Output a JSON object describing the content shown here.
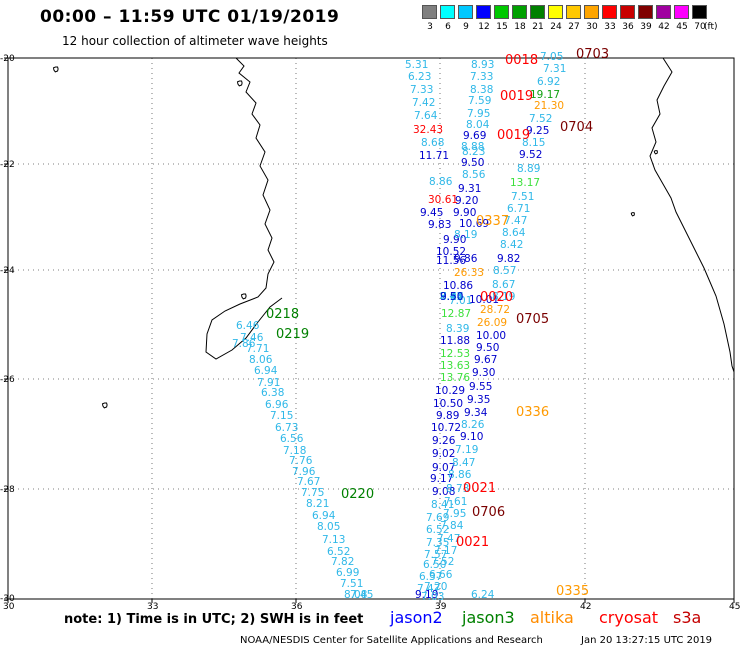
{
  "header": {
    "title": "00:00 – 11:59 UTC 01/19/2019",
    "subtitle": "12 hour collection of altimeter wave heights"
  },
  "legend": {
    "levels": [
      "3",
      "6",
      "9",
      "12",
      "15",
      "18",
      "21",
      "24",
      "27",
      "30",
      "33",
      "36",
      "39",
      "42",
      "45",
      "70"
    ],
    "unit": "(ft)",
    "colors": [
      "#808080",
      "#00ffff",
      "#00c8ff",
      "#0000ff",
      "#00c800",
      "#00a000",
      "#008000",
      "#ffff00",
      "#ffc800",
      "#ffa500",
      "#ff0000",
      "#c80000",
      "#800000",
      "#a000a0",
      "#ff00ff",
      "#000000"
    ]
  },
  "axes": {
    "lat_labels": [
      "-20",
      "-22",
      "-24",
      "-26",
      "-28",
      "-30"
    ],
    "lon_labels": [
      "30",
      "33",
      "36",
      "39",
      "42",
      "45"
    ]
  },
  "colors": {
    "c_6": "#30b8e8",
    "c_9": "#0000cc",
    "c_12": "#0000ff",
    "c_15": "#3ce03c",
    "c_18": "#10a010",
    "c_27": "#ff9a00",
    "c_33": "#ff0000",
    "c_36": "#c40000",
    "c_39": "#7a0000",
    "c_t_jason3": "#008000",
    "c_t_altika": "#ff8c00"
  },
  "map_labels": [
    {
      "t": "5.31",
      "c": "c_6"
    },
    {
      "t": "6.23",
      "c": "c_6"
    },
    {
      "t": "7.33",
      "c": "c_6"
    },
    {
      "t": "7.42",
      "c": "c_6"
    },
    {
      "t": "7.64",
      "c": "c_6"
    },
    {
      "t": "32.43",
      "c": "c_33"
    },
    {
      "t": "8.68",
      "c": "c_6"
    },
    {
      "t": "11.71",
      "c": "c_9"
    },
    {
      "t": "8.93",
      "c": "c_6"
    },
    {
      "t": "7.33",
      "c": "c_6"
    },
    {
      "t": "8.38",
      "c": "c_6"
    },
    {
      "t": "7.59",
      "c": "c_6"
    },
    {
      "t": "7.95",
      "c": "c_6"
    },
    {
      "t": "8.04",
      "c": "c_6"
    },
    {
      "t": "9.69",
      "c": "c_9"
    },
    {
      "t": "8.88",
      "c": "c_6"
    },
    {
      "t": "8.23",
      "c": "c_6"
    },
    {
      "t": "9.50",
      "c": "c_9"
    },
    {
      "t": "8.56",
      "c": "c_6"
    },
    {
      "t": "8.86",
      "c": "c_6"
    },
    {
      "t": "9.31",
      "c": "c_9"
    },
    {
      "t": "30.61",
      "c": "c_33"
    },
    {
      "t": "9.20",
      "c": "c_9"
    },
    {
      "t": "9.45",
      "c": "c_9"
    },
    {
      "t": "9.90",
      "c": "c_9"
    },
    {
      "t": "9.83",
      "c": "c_9"
    },
    {
      "t": "10.69",
      "c": "c_9"
    },
    {
      "t": "9.90",
      "c": "c_9"
    },
    {
      "t": "8.19",
      "c": "c_6"
    },
    {
      "t": "10.52",
      "c": "c_9"
    },
    {
      "t": "11.56",
      "c": "c_9"
    },
    {
      "t": "9.86",
      "c": "c_9"
    },
    {
      "t": "26.33",
      "c": "c_27"
    },
    {
      "t": "10.86",
      "c": "c_9"
    },
    {
      "t": "7.01",
      "c": "c_6"
    },
    {
      "t": "10.01",
      "c": "c_9"
    },
    {
      "t": "12.87",
      "c": "c_15"
    },
    {
      "t": "8.39",
      "c": "c_6"
    },
    {
      "t": "11.88",
      "c": "c_9"
    },
    {
      "t": "12.53",
      "c": "c_15"
    },
    {
      "t": "13.63",
      "c": "c_15"
    },
    {
      "t": "13.76",
      "c": "c_15"
    },
    {
      "t": "10.29",
      "c": "c_9"
    },
    {
      "t": "10.50",
      "c": "c_9"
    },
    {
      "t": "9.89",
      "c": "c_9"
    },
    {
      "t": "10.72",
      "c": "c_9"
    },
    {
      "t": "9.26",
      "c": "c_9"
    },
    {
      "t": "9.02",
      "c": "c_9"
    },
    {
      "t": "9.07",
      "c": "c_9"
    },
    {
      "t": "9.17",
      "c": "c_9"
    },
    {
      "t": "9.08",
      "c": "c_9"
    },
    {
      "t": "8.41",
      "c": "c_6"
    },
    {
      "t": "7.69",
      "c": "c_6"
    },
    {
      "t": "6.52",
      "c": "c_6"
    },
    {
      "t": "7.35",
      "c": "c_6"
    },
    {
      "t": "7.57",
      "c": "c_6"
    },
    {
      "t": "6.50",
      "c": "c_6"
    },
    {
      "t": "6.37",
      "c": "c_6"
    },
    {
      "t": "7.47",
      "c": "c_6"
    },
    {
      "t": "9.19",
      "c": "c_9"
    },
    {
      "t": "6.24",
      "c": "c_6"
    },
    {
      "t": "7.05",
      "c": "c_6"
    },
    {
      "t": "7.31",
      "c": "c_6"
    },
    {
      "t": "6.92",
      "c": "c_6"
    },
    {
      "t": "19.17",
      "c": "c_18"
    },
    {
      "t": "21.30",
      "c": "c_27"
    },
    {
      "t": "7.52",
      "c": "c_6"
    },
    {
      "t": "9.25",
      "c": "c_9"
    },
    {
      "t": "8.15",
      "c": "c_6"
    },
    {
      "t": "9.52",
      "c": "c_9"
    },
    {
      "t": "8.89",
      "c": "c_6"
    },
    {
      "t": "13.17",
      "c": "c_15"
    },
    {
      "t": "7.51",
      "c": "c_6"
    },
    {
      "t": "6.71",
      "c": "c_6"
    },
    {
      "t": "7.47",
      "c": "c_6"
    },
    {
      "t": "8.64",
      "c": "c_6"
    },
    {
      "t": "8.42",
      "c": "c_6"
    },
    {
      "t": "9.82",
      "c": "c_9"
    },
    {
      "t": "8.57",
      "c": "c_6"
    },
    {
      "t": "8.67",
      "c": "c_6"
    },
    {
      "t": "8.19",
      "c": "c_6"
    },
    {
      "t": "28.72",
      "c": "c_27"
    },
    {
      "t": "26.09",
      "c": "c_27"
    },
    {
      "t": "10.00",
      "c": "c_9"
    },
    {
      "t": "9.50",
      "c": "c_9"
    },
    {
      "t": "9.67",
      "c": "c_9"
    },
    {
      "t": "9.30",
      "c": "c_9"
    },
    {
      "t": "9.55",
      "c": "c_9"
    },
    {
      "t": "9.35",
      "c": "c_9"
    },
    {
      "t": "9.34",
      "c": "c_9"
    },
    {
      "t": "8.26",
      "c": "c_6"
    },
    {
      "t": "9.10",
      "c": "c_9"
    },
    {
      "t": "7.19",
      "c": "c_6"
    },
    {
      "t": "8.47",
      "c": "c_6"
    },
    {
      "t": "8.86",
      "c": "c_6"
    },
    {
      "t": "8.73",
      "c": "c_6"
    },
    {
      "t": "7.61",
      "c": "c_6"
    },
    {
      "t": "7.95",
      "c": "c_6"
    },
    {
      "t": "7.84",
      "c": "c_6"
    },
    {
      "t": "7.47",
      "c": "c_6"
    },
    {
      "t": "7.17",
      "c": "c_6"
    },
    {
      "t": "7.52",
      "c": "c_6"
    },
    {
      "t": "6.66",
      "c": "c_6"
    },
    {
      "t": "7.20",
      "c": "c_6"
    },
    {
      "t": "7.03",
      "c": "c_6"
    },
    {
      "t": "7.86",
      "c": "c_6"
    },
    {
      "t": "6.46",
      "c": "c_6"
    },
    {
      "t": "7.46",
      "c": "c_6"
    },
    {
      "t": "7.71",
      "c": "c_6"
    },
    {
      "t": "8.06",
      "c": "c_6"
    },
    {
      "t": "6.94",
      "c": "c_6"
    },
    {
      "t": "7.91",
      "c": "c_6"
    },
    {
      "t": "6.38",
      "c": "c_6"
    },
    {
      "t": "6.96",
      "c": "c_6"
    },
    {
      "t": "7.15",
      "c": "c_6"
    },
    {
      "t": "6.73",
      "c": "c_6"
    },
    {
      "t": "6.56",
      "c": "c_6"
    },
    {
      "t": "7.18",
      "c": "c_6"
    },
    {
      "t": "7.76",
      "c": "c_6"
    },
    {
      "t": "7.96",
      "c": "c_6"
    },
    {
      "t": "7.67",
      "c": "c_6"
    },
    {
      "t": "7.75",
      "c": "c_6"
    },
    {
      "t": "8.21",
      "c": "c_6"
    },
    {
      "t": "6.94",
      "c": "c_6"
    },
    {
      "t": "8.05",
      "c": "c_6"
    },
    {
      "t": "7.13",
      "c": "c_6"
    },
    {
      "t": "6.52",
      "c": "c_6"
    },
    {
      "t": "7.82",
      "c": "c_6"
    },
    {
      "t": "6.99",
      "c": "c_6"
    },
    {
      "t": "7.51",
      "c": "c_6"
    },
    {
      "t": "8.08",
      "c": "c_6"
    },
    {
      "t": "7.45",
      "c": "c_6"
    },
    {
      "t": "8.92",
      "c": "c_6"
    },
    {
      "t": "7.16",
      "c": "c_6"
    },
    {
      "t": "7.43",
      "c": "c_6"
    },
    {
      "t": "7.54",
      "c": "c_6"
    },
    {
      "t": "8.03",
      "c": "c_6"
    },
    {
      "t": "8.12",
      "c": "c_6"
    },
    {
      "t": "8.11",
      "c": "c_6"
    },
    {
      "t": "8.37",
      "c": "c_6"
    },
    {
      "t": "8.71",
      "c": "c_6"
    },
    {
      "t": "9.50",
      "c": "c_9"
    }
  ],
  "time_labels": [
    {
      "t": "0018",
      "c": "c_33"
    },
    {
      "t": "0703",
      "c": "c_39"
    },
    {
      "t": "0019",
      "c": "c_33"
    },
    {
      "t": "0704",
      "c": "c_39"
    },
    {
      "t": "0019",
      "c": "c_33"
    },
    {
      "t": "0337",
      "c": "c_27"
    },
    {
      "t": "0020",
      "c": "c_33"
    },
    {
      "t": "0705",
      "c": "c_39"
    },
    {
      "t": "0218",
      "c": "c_t_jason3"
    },
    {
      "t": "0219",
      "c": "c_t_jason3"
    },
    {
      "t": "0336",
      "c": "c_27"
    },
    {
      "t": "0220",
      "c": "c_t_jason3"
    },
    {
      "t": "0021",
      "c": "c_33"
    },
    {
      "t": "0706",
      "c": "c_39"
    },
    {
      "t": "0021",
      "c": "c_33"
    },
    {
      "t": "0335",
      "c": "c_27"
    }
  ],
  "footer": {
    "note": "note:  1) Time is in UTC;  2) SWH is in feet",
    "satellites": [
      {
        "label": "jason2",
        "color": "#0000ff"
      },
      {
        "label": "jason3",
        "color": "#008000"
      },
      {
        "label": "altika",
        "color": "#ff8c00"
      },
      {
        "label": "cryosat",
        "color": "#ff0000"
      },
      {
        "label": "s3a",
        "color": "#c40000"
      }
    ],
    "credit": "NOAA/NESDIS Center for Satellite Applications and Research",
    "stamp": "Jan 20 13:27:15 UTC 2019"
  }
}
